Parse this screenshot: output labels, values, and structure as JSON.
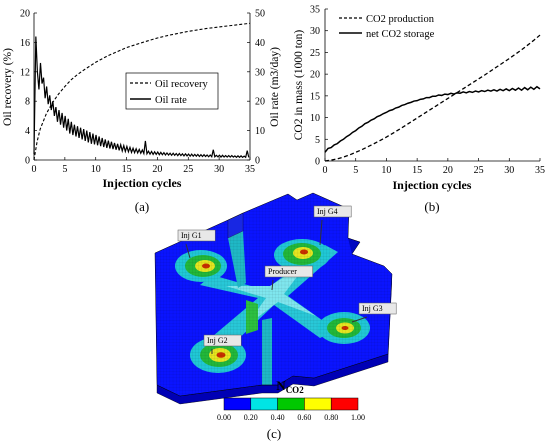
{
  "chart_data": [
    {
      "panel": "(a)",
      "type": "line",
      "xlabel": "Injection cycles",
      "ylabel": "Oil recovery (%)",
      "y2label": "Oil rate (m3/day)",
      "xlim": [
        0,
        35
      ],
      "ylim": [
        0,
        20
      ],
      "y2lim": [
        0,
        50
      ],
      "xticks": [
        "0",
        "5",
        "10",
        "15",
        "20",
        "25",
        "30",
        "35"
      ],
      "yticks": [
        "0",
        "4",
        "8",
        "12",
        "16",
        "20"
      ],
      "y2ticks": [
        "0",
        "10",
        "20",
        "30",
        "40",
        "50"
      ],
      "legend_position": "center-right",
      "series": [
        {
          "name": "Oil recovery",
          "style": "dashed",
          "axis": "left",
          "x": [
            0,
            0.5,
            1,
            2,
            3,
            4,
            5,
            6,
            7,
            8,
            10,
            12,
            15,
            18,
            20,
            22,
            25,
            28,
            30,
            32,
            35
          ],
          "values": [
            0,
            2.5,
            4.2,
            6.3,
            7.8,
            9.0,
            10.0,
            10.9,
            11.6,
            12.2,
            13.3,
            14.2,
            15.3,
            16.1,
            16.6,
            17.0,
            17.5,
            17.9,
            18.1,
            18.3,
            18.6
          ]
        },
        {
          "name": "Oil rate",
          "style": "solid",
          "axis": "right",
          "x": [
            0,
            0.3,
            0.55,
            0.8,
            1.05,
            1.3,
            1.55,
            1.8,
            2.05,
            2.3,
            2.55,
            2.8,
            3.05,
            3.3,
            3.55,
            3.8,
            4.05,
            4.3,
            4.55,
            4.8,
            5.05,
            5.3,
            5.55,
            5.8,
            6.05,
            6.3,
            6.55,
            6.8,
            7.05,
            7.3,
            7.55,
            7.8,
            8.05,
            8.3,
            8.55,
            8.8,
            9.05,
            9.3,
            9.55,
            9.8,
            10.05,
            10.3,
            10.55,
            10.8,
            11.05,
            11.3,
            11.55,
            11.8,
            12.05,
            12.3,
            12.55,
            12.8,
            13.05,
            13.3,
            13.55,
            13.8,
            14.05,
            14.3,
            14.55,
            14.8,
            15.05,
            15.3,
            15.55,
            15.8,
            16.05,
            16.3,
            16.55,
            16.8,
            17.05,
            17.3,
            17.55,
            17.8,
            18.05,
            18.3,
            18.55,
            18.8,
            19.05,
            19.3,
            19.55,
            19.8,
            20.05,
            20.3,
            20.55,
            20.8,
            21.05,
            21.3,
            21.55,
            21.8,
            22.05,
            22.3,
            22.55,
            22.8,
            23.05,
            23.3,
            23.55,
            23.8,
            24.05,
            24.3,
            24.55,
            24.8,
            25.05,
            25.3,
            25.55,
            25.8,
            26.05,
            26.3,
            26.55,
            26.8,
            27.05,
            27.3,
            27.55,
            27.8,
            28.05,
            28.3,
            28.55,
            28.8,
            29.05,
            29.3,
            29.55,
            29.8,
            30.05,
            30.3,
            30.55,
            30.8,
            31.05,
            31.3,
            31.55,
            31.8,
            32.05,
            32.3,
            32.55,
            32.8,
            33.05,
            33.3,
            33.55,
            33.8,
            34.05,
            34.3,
            34.55,
            34.8
          ],
          "values": [
            2,
            42,
            30,
            24,
            33,
            26,
            28,
            21,
            25,
            19,
            22,
            17,
            20,
            15,
            18,
            13,
            17,
            12,
            16,
            11,
            15,
            10,
            14,
            9,
            13,
            8.5,
            12,
            8,
            11.5,
            7.5,
            11,
            7,
            10.5,
            6.5,
            10,
            6,
            9.5,
            5.5,
            9,
            5.3,
            8.5,
            5,
            8,
            4.7,
            7.5,
            4.4,
            7,
            4.1,
            6.6,
            3.9,
            6.2,
            3.7,
            5.8,
            3.5,
            5.5,
            3.3,
            5.2,
            3.1,
            4.9,
            2.9,
            4.6,
            2.8,
            4.3,
            2.6,
            4,
            2.5,
            3.8,
            2.4,
            3.6,
            2.3,
            3.4,
            2.2,
            6.5,
            2.1,
            3,
            2,
            2.9,
            1.9,
            2.8,
            1.9,
            2.7,
            1.8,
            2.6,
            1.8,
            2.5,
            1.7,
            2.4,
            1.7,
            2.3,
            1.6,
            2.3,
            1.6,
            2.2,
            1.5,
            2.2,
            1.5,
            2.1,
            1.4,
            2.1,
            1.4,
            2,
            1.3,
            2,
            1.3,
            1.9,
            1.3,
            1.9,
            1.2,
            1.8,
            1.2,
            1.8,
            1.2,
            1.7,
            1.1,
            1.7,
            1.1,
            3.5,
            1.1,
            1.6,
            1.1,
            1.6,
            1,
            1.6,
            1,
            1.5,
            1,
            1.5,
            1,
            1.5,
            1,
            1.4,
            0.9,
            1.4,
            0.9,
            1.4,
            0.9,
            1.3,
            0.9,
            3.2,
            0.9
          ]
        }
      ]
    },
    {
      "panel": "(b)",
      "type": "line",
      "xlabel": "Injection cycles",
      "ylabel": "CO2 in mass (1000 ton)",
      "xlim": [
        0,
        35
      ],
      "ylim": [
        0,
        35
      ],
      "xticks": [
        "0",
        "5",
        "10",
        "15",
        "20",
        "25",
        "30",
        "35"
      ],
      "yticks": [
        "0",
        "5",
        "10",
        "15",
        "20",
        "25",
        "30",
        "35"
      ],
      "legend_position": "top-left",
      "series": [
        {
          "name": "CO2 production",
          "style": "dashed",
          "x": [
            0,
            1,
            2,
            3,
            4,
            5,
            6,
            8,
            10,
            12,
            14,
            16,
            18,
            20,
            22,
            24,
            26,
            28,
            30,
            32,
            34,
            35
          ],
          "values": [
            0,
            0.2,
            0.5,
            0.9,
            1.4,
            2.0,
            2.6,
            4.0,
            5.5,
            7.2,
            9.0,
            10.8,
            12.6,
            14.4,
            16.2,
            18.0,
            19.8,
            21.7,
            23.6,
            25.6,
            27.8,
            29.0
          ]
        },
        {
          "name": "net CO2 storage",
          "style": "solid",
          "x": [
            0,
            0.5,
            1,
            1.5,
            2,
            2.5,
            3,
            3.5,
            4,
            4.5,
            5,
            5.5,
            6,
            6.5,
            7,
            7.5,
            8,
            8.5,
            9,
            9.5,
            10,
            10.5,
            11,
            11.5,
            12,
            12.5,
            13,
            13.5,
            14,
            14.5,
            15,
            15.5,
            16,
            16.5,
            17,
            17.5,
            18,
            18.5,
            19,
            19.5,
            20,
            20.5,
            21,
            21.5,
            22,
            22.5,
            23,
            23.5,
            24,
            24.5,
            25,
            25.5,
            26,
            26.5,
            27,
            27.5,
            28,
            28.5,
            29,
            29.5,
            30,
            30.5,
            31,
            31.5,
            32,
            32.5,
            33,
            33.5,
            34,
            34.5,
            35
          ],
          "values": [
            2.0,
            2.9,
            3.1,
            3.7,
            4.0,
            4.6,
            5.0,
            5.6,
            6.0,
            6.6,
            7.0,
            7.6,
            8.0,
            8.6,
            8.9,
            9.4,
            9.7,
            10.2,
            10.5,
            10.9,
            11.2,
            11.6,
            11.8,
            12.2,
            12.4,
            12.8,
            13.0,
            13.3,
            13.5,
            13.8,
            13.9,
            14.2,
            14.3,
            14.6,
            14.6,
            14.9,
            14.9,
            15.2,
            15.1,
            15.4,
            15.3,
            15.6,
            15.4,
            15.7,
            15.6,
            15.9,
            15.7,
            16.0,
            15.8,
            16.1,
            15.9,
            16.2,
            16.0,
            16.3,
            16.1,
            16.4,
            16.1,
            16.5,
            16.2,
            16.6,
            16.2,
            16.7,
            16.3,
            16.8,
            16.3,
            16.9,
            16.4,
            17.0,
            16.5,
            17.1,
            16.6
          ]
        }
      ]
    }
  ],
  "panel_labels": {
    "a": "(a)",
    "b": "(b)",
    "c": "(c)"
  },
  "reservoir_map": {
    "wells": [
      {
        "id": "inj-g1",
        "label": "Inj G1"
      },
      {
        "id": "inj-g4",
        "label": "Inj G4"
      },
      {
        "id": "producer",
        "label": "Producer"
      },
      {
        "id": "inj-g3",
        "label": "Inj G3"
      },
      {
        "id": "inj-g2",
        "label": "Inj G2"
      }
    ],
    "colorbar": {
      "title_main": "N",
      "title_sub": "CO2",
      "ticks": [
        "0.00",
        "0.20",
        "0.40",
        "0.60",
        "0.80",
        "1.00"
      ],
      "colors": [
        "#0000ff",
        "#00e5e5",
        "#00c800",
        "#ffff00",
        "#ff0000"
      ]
    }
  }
}
